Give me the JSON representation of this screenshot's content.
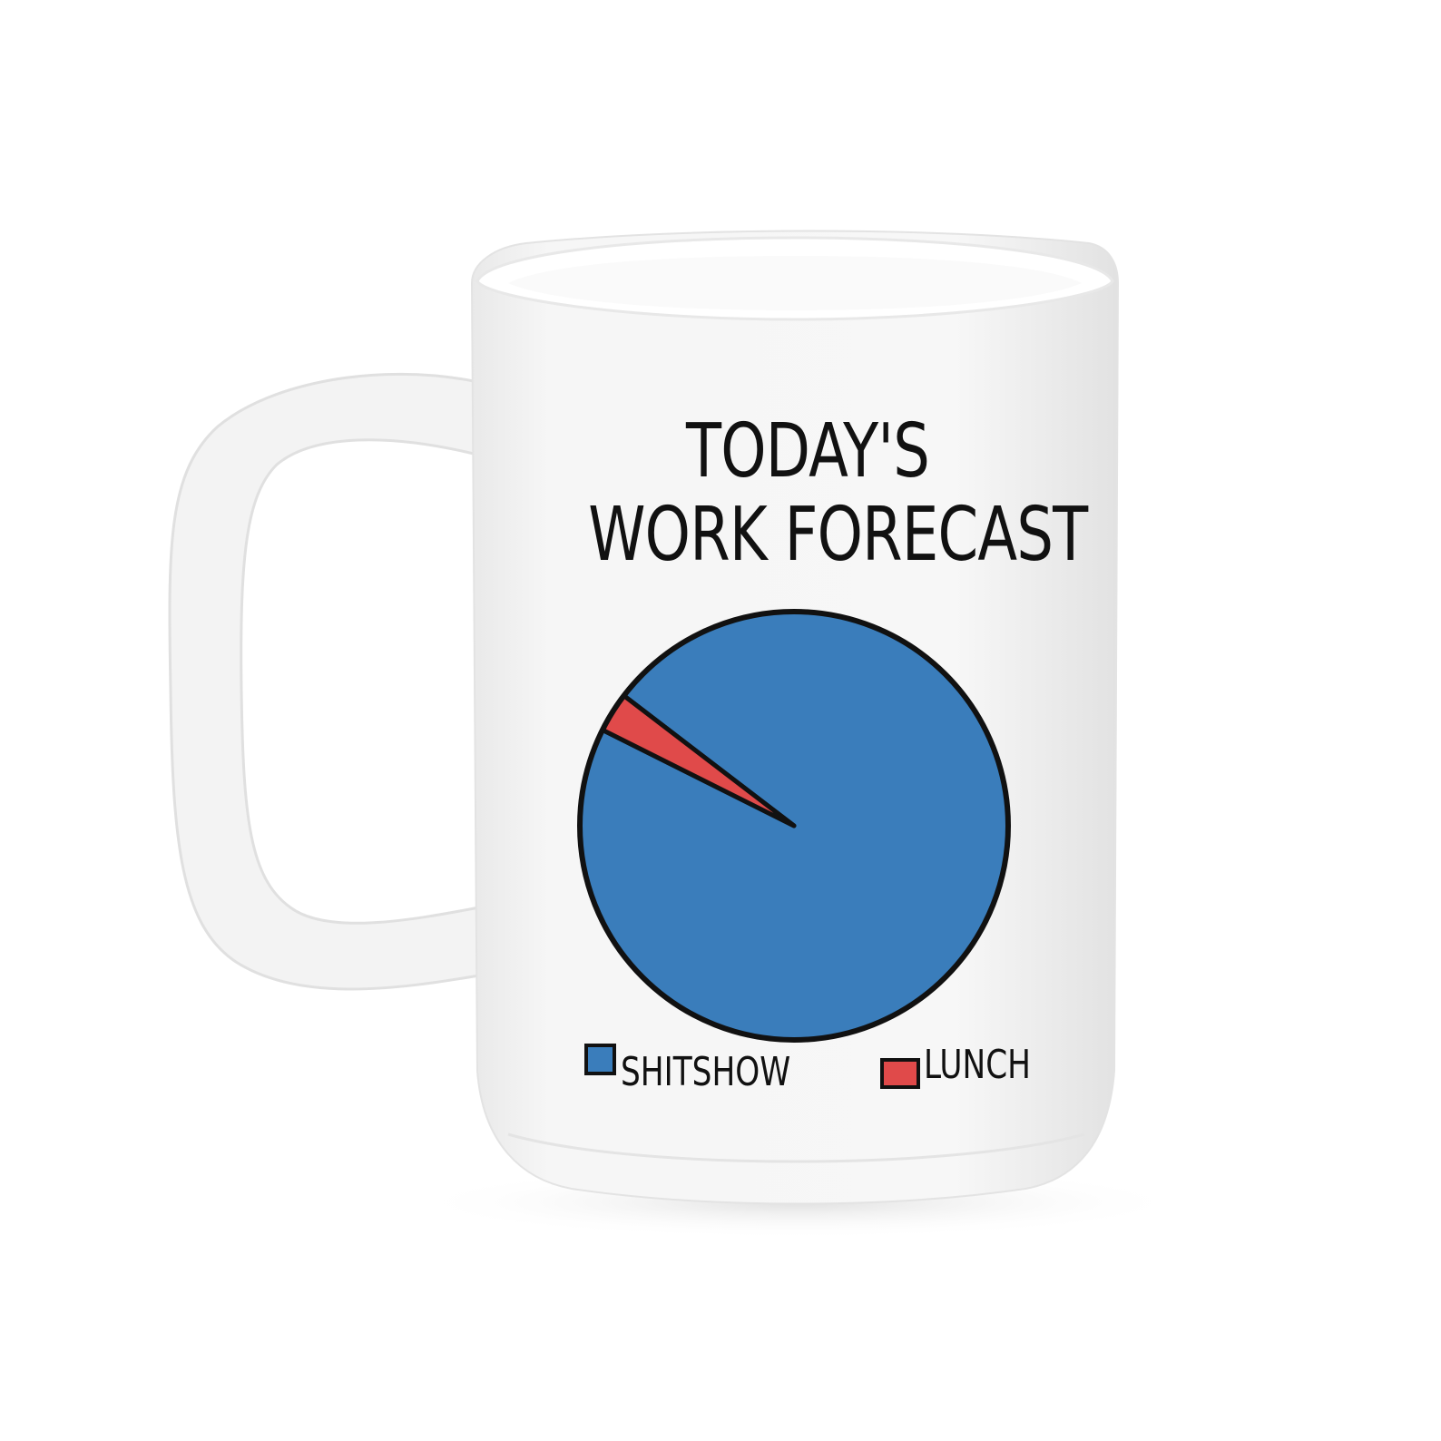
{
  "chart_data": {
    "type": "pie",
    "title_lines": [
      "TODAY'S",
      "WORK FORECAST"
    ],
    "slices": [
      {
        "label": "SHITSHOW",
        "value": 97,
        "color": "#3a7dbb"
      },
      {
        "label": "LUNCH",
        "value": 3,
        "color": "#e04a4a"
      }
    ],
    "legend": {
      "placement": "bottom"
    }
  },
  "mug": {
    "body_color": "#f4f4f4",
    "shade_color": "#e6e6e6"
  }
}
